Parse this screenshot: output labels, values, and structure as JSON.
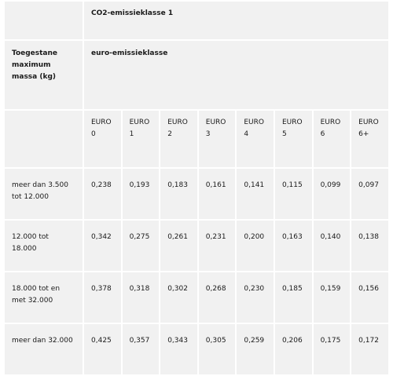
{
  "table": {
    "co2_header": "CO2-emissieklasse 1",
    "mass_header": "Toegestane maximum massa (kg)",
    "euro_header": "euro-emissieklasse",
    "euro_classes": [
      "EURO 0",
      "EURO 1",
      "EURO 2",
      "EURO 3",
      "EURO 4",
      "EURO 5",
      "EURO 6",
      "EURO 6+"
    ],
    "rows": [
      {
        "label": "meer dan 3.500 tot 12.000",
        "values": [
          "0,238",
          "0,193",
          "0,183",
          "0,161",
          "0,141",
          "0,115",
          "0,099",
          "0,097"
        ]
      },
      {
        "label": "12.000 tot 18.000",
        "values": [
          "0,342",
          "0,275",
          "0,261",
          "0,231",
          "0,200",
          "0,163",
          "0,140",
          "0,138"
        ]
      },
      {
        "label": "18.000 tot en met 32.000",
        "values": [
          "0,378",
          "0,318",
          "0,302",
          "0,268",
          "0,230",
          "0,185",
          "0,159",
          "0,156"
        ]
      },
      {
        "label": "meer dan 32.000",
        "values": [
          "0,425",
          "0,357",
          "0,343",
          "0,305",
          "0,259",
          "0,206",
          "0,175",
          "0,172"
        ]
      }
    ]
  }
}
